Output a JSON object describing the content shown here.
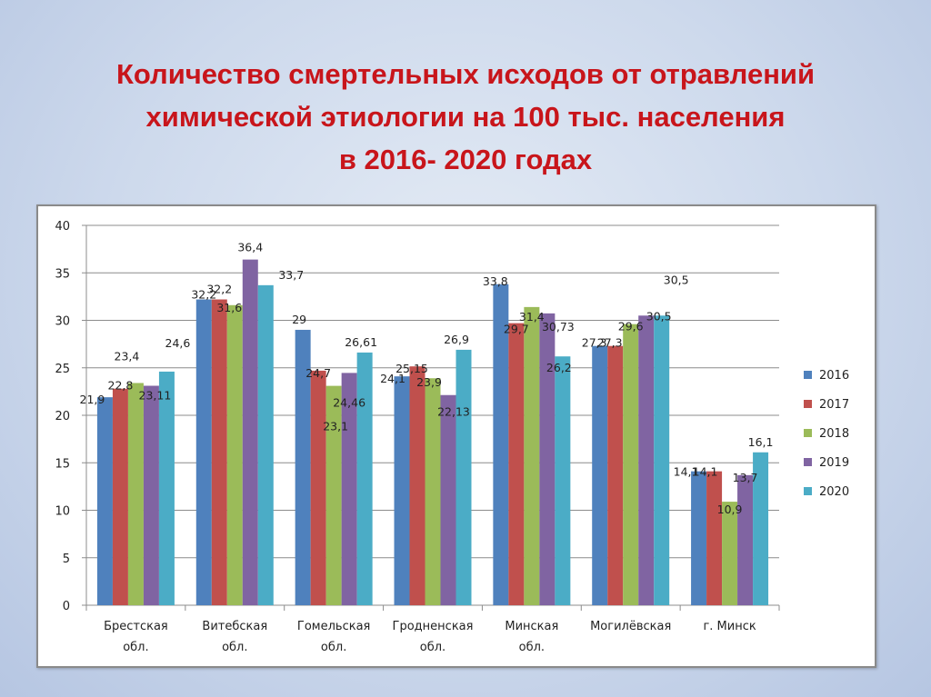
{
  "title": {
    "line1": "Количество смертельных исходов от отравлений",
    "line2": "химической этиологии на 100 тыс. населения",
    "line3": "в 2016- 2020 годах"
  },
  "colors": {
    "title": "#c8151b",
    "series": [
      "#4f81bd",
      "#c0504d",
      "#9bbb59",
      "#8064a2",
      "#4bacc6"
    ]
  },
  "chart_data": {
    "type": "bar",
    "categories": [
      [
        "Брестская",
        "обл."
      ],
      [
        "Витебская",
        "обл."
      ],
      [
        "Гомельская",
        "обл."
      ],
      [
        "Гродненская",
        "обл."
      ],
      [
        "Минская",
        "обл."
      ],
      [
        "Могилёвская"
      ],
      [
        "г. Минск"
      ]
    ],
    "series": [
      {
        "name": "2016",
        "values": [
          21.9,
          32.2,
          29,
          24.1,
          33.8,
          27.3,
          14.1
        ],
        "labels": [
          "21,9",
          "32,2",
          "29",
          "24,1",
          "33,8",
          "27,3",
          "14,1"
        ]
      },
      {
        "name": "2017",
        "values": [
          22.8,
          32.2,
          24.7,
          25.15,
          29.7,
          27.3,
          14.1
        ],
        "labels": [
          "22,8",
          "32,2",
          "24,7",
          "25,15",
          "29,7",
          "27,3",
          "14,1"
        ]
      },
      {
        "name": "2018",
        "values": [
          23.4,
          31.6,
          23.1,
          23.9,
          31.4,
          29.6,
          10.9
        ],
        "labels": [
          "23,4",
          "31,6",
          "23,1",
          "23,9",
          "31,4",
          "29,6",
          "10,9"
        ]
      },
      {
        "name": "2019",
        "values": [
          23.11,
          36.4,
          24.46,
          22.13,
          30.73,
          30.5,
          13.7
        ],
        "labels": [
          "23,11",
          "36,4",
          "24,46",
          "22,13",
          "30,73",
          "30,5",
          "13,7"
        ]
      },
      {
        "name": "2020",
        "values": [
          24.6,
          33.7,
          26.61,
          26.9,
          26.2,
          30.5,
          16.1
        ],
        "labels": [
          "24,6",
          "33,7",
          "26,61",
          "26,9",
          "26,2",
          "30,5",
          "16,1"
        ]
      }
    ],
    "ylim": [
      0,
      40
    ],
    "yticks": [
      0,
      5,
      10,
      15,
      20,
      25,
      30,
      35,
      40
    ],
    "grid": true,
    "legend": "right"
  }
}
